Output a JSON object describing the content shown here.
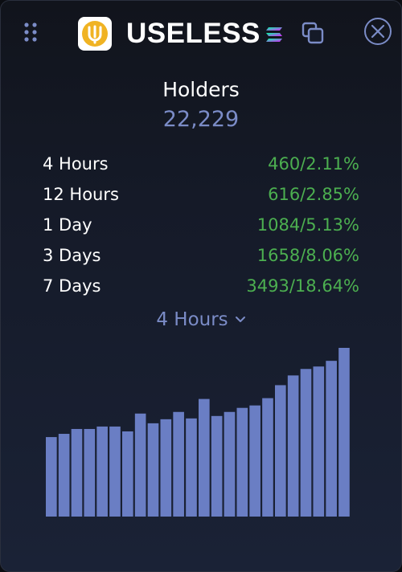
{
  "header": {
    "token_name": "USELESS",
    "icons": {
      "drag": "drag-handle-icon",
      "logo": "useless-logo",
      "chain": "solana-icon",
      "copy": "copy-icon",
      "close": "close-icon"
    }
  },
  "holders": {
    "label": "Holders",
    "value": "22,229"
  },
  "stats": [
    {
      "label": "4 Hours",
      "count": "460",
      "percent": "2.11%"
    },
    {
      "label": "12 Hours",
      "count": "616",
      "percent": "2.85%"
    },
    {
      "label": "1 Day",
      "count": "1084",
      "percent": "5.13%"
    },
    {
      "label": "3 Days",
      "count": "1658",
      "percent": "8.06%"
    },
    {
      "label": "7 Days",
      "count": "3493",
      "percent": "18.64%"
    }
  ],
  "range_selector": {
    "selected": "4 Hours"
  },
  "colors": {
    "accent": "#7b8cc7",
    "positive": "#4caf50",
    "bar": "#6a7ec4",
    "logo": "#f0b323"
  },
  "chart_data": {
    "type": "bar",
    "values": [
      98,
      102,
      108,
      108,
      111,
      111,
      105,
      127,
      115,
      120,
      129,
      121,
      145,
      124,
      129,
      134,
      137,
      146,
      162,
      174,
      182,
      185,
      192,
      208
    ]
  }
}
